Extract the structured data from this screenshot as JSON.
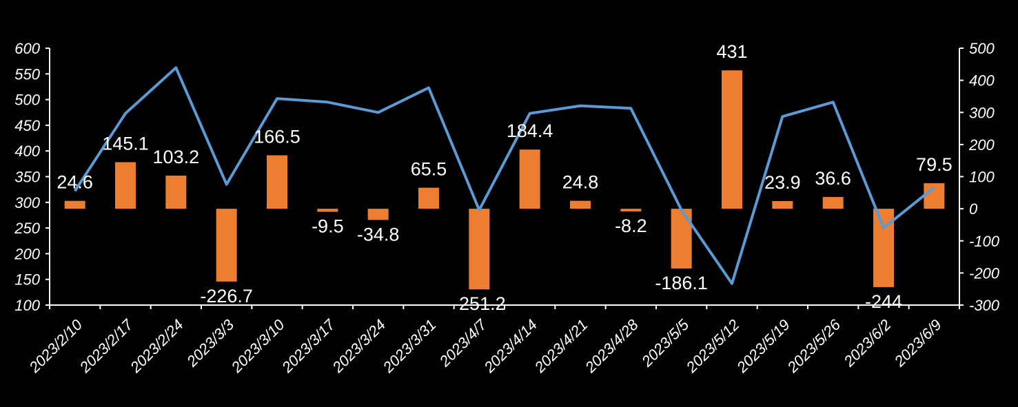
{
  "chart_data": {
    "type": "bar+line",
    "categories": [
      "2023/2/10",
      "2023/2/17",
      "2023/2/24",
      "2023/3/3",
      "2023/3/10",
      "2023/3/17",
      "2023/3/24",
      "2023/3/31",
      "2023/4/7",
      "2023/4/14",
      "2023/4/21",
      "2023/4/28",
      "2023/5/5",
      "2023/5/12",
      "2023/5/19",
      "2023/5/26",
      "2023/6/2",
      "2023/6/9"
    ],
    "series": [
      {
        "name": "bar",
        "axis": "right",
        "type": "bar",
        "color": "#ED7D31",
        "values": [
          24.6,
          145.1,
          103.2,
          -226.7,
          166.5,
          -9.5,
          -34.8,
          65.5,
          -251.2,
          184.4,
          24.8,
          -8.2,
          -186.1,
          431,
          23.9,
          36.6,
          -244,
          79.5
        ],
        "labels": [
          "24.6",
          "145.1",
          "103.2",
          "-226.7",
          "166.5",
          "-9.5",
          "-34.8",
          "65.5",
          "-251.2",
          "184.4",
          "24.8",
          "-8.2",
          "-186.1",
          "431",
          "23.9",
          "36.6",
          "-244",
          "79.5"
        ]
      },
      {
        "name": "line",
        "axis": "left",
        "type": "line",
        "color": "#5B9BD5",
        "values": [
          322,
          473,
          562,
          335,
          502,
          495,
          475,
          523,
          285,
          473,
          488,
          483,
          285,
          142,
          467,
          495,
          250,
          329
        ]
      }
    ],
    "left_axis": {
      "min": 100,
      "max": 600,
      "step": 50,
      "ticks": [
        "100",
        "150",
        "200",
        "250",
        "300",
        "350",
        "400",
        "450",
        "500",
        "550",
        "600"
      ]
    },
    "right_axis": {
      "min": -300,
      "max": 500,
      "step": 100,
      "ticks": [
        "-300",
        "-200",
        "-100",
        "0",
        "100",
        "200",
        "300",
        "400",
        "500"
      ]
    },
    "title": "",
    "legend": "none"
  }
}
